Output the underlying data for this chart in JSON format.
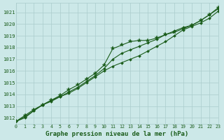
{
  "title": "Graphe pression niveau de la mer (hPa)",
  "bg_color": "#cce8e8",
  "grid_color": "#aacccc",
  "line_color": "#1a5c1a",
  "text_color": "#1a5c1a",
  "xlim": [
    0,
    23
  ],
  "ylim": [
    1011.5,
    1021.8
  ],
  "yticks": [
    1012,
    1013,
    1014,
    1015,
    1016,
    1017,
    1018,
    1019,
    1020,
    1021
  ],
  "xticks": [
    0,
    1,
    2,
    3,
    4,
    5,
    6,
    7,
    8,
    9,
    10,
    11,
    12,
    13,
    14,
    15,
    16,
    17,
    18,
    19,
    20,
    21,
    22,
    23
  ],
  "line1_x": [
    0,
    1,
    2,
    3,
    4,
    5,
    6,
    7,
    8,
    9,
    10,
    11,
    12,
    13,
    14,
    15,
    16,
    17,
    18,
    19,
    20,
    21,
    22,
    23
  ],
  "line1_y": [
    1011.7,
    1012.0,
    1012.6,
    1013.1,
    1013.5,
    1013.8,
    1014.1,
    1014.5,
    1015.0,
    1015.5,
    1016.0,
    1016.4,
    1016.7,
    1017.0,
    1017.3,
    1017.7,
    1018.1,
    1018.5,
    1019.0,
    1019.5,
    1019.8,
    1020.1,
    1020.5,
    1021.1
  ],
  "line2_x": [
    0,
    1,
    2,
    3,
    4,
    5,
    6,
    7,
    8,
    9,
    10,
    11,
    12,
    13,
    14,
    15,
    16,
    17,
    18,
    19,
    20,
    21,
    22,
    23
  ],
  "line2_y": [
    1011.7,
    1012.1,
    1012.6,
    1013.1,
    1013.4,
    1013.8,
    1014.2,
    1014.6,
    1015.1,
    1015.6,
    1016.2,
    1017.0,
    1017.5,
    1017.8,
    1018.1,
    1018.4,
    1018.7,
    1019.1,
    1019.4,
    1019.7,
    1019.9,
    1020.3,
    1020.8,
    1021.3
  ],
  "line3_x": [
    0,
    1,
    2,
    3,
    4,
    5,
    6,
    7,
    8,
    9,
    10,
    11,
    12,
    13,
    14,
    15,
    16,
    17,
    18,
    19,
    20,
    21,
    22,
    23
  ],
  "line3_y": [
    1011.7,
    1012.2,
    1012.7,
    1013.1,
    1013.5,
    1013.9,
    1014.4,
    1014.8,
    1015.3,
    1015.8,
    1016.5,
    1017.9,
    1018.2,
    1018.5,
    1018.6,
    1018.6,
    1018.8,
    1019.1,
    1019.3,
    1019.6,
    1019.9,
    1020.3,
    1020.8,
    1021.4
  ]
}
